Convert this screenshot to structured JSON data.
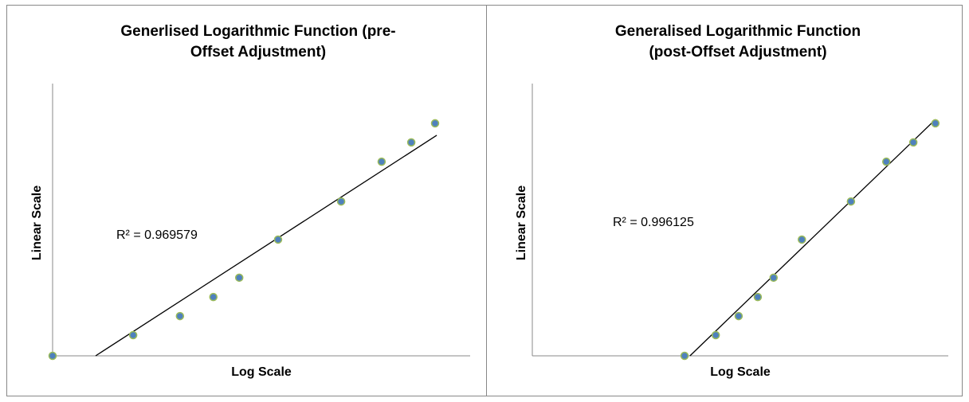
{
  "chart_data": [
    {
      "type": "scatter",
      "title": [
        "Generlised Logarithmic Function (pre-",
        "Offset Adjustment)"
      ],
      "x_label": "Log Scale",
      "y_label": "Linear Scale",
      "annotation": "R² = 0.969579",
      "x": [
        0,
        19.3,
        30.5,
        38.5,
        44.7,
        54.0,
        69.1,
        78.8,
        85.9,
        91.6
      ],
      "values": [
        0,
        7.6,
        14.6,
        21.6,
        28.7,
        42.7,
        56.7,
        71.3,
        78.4,
        85.4
      ],
      "trendline": {
        "x": [
          10.3,
          92
        ],
        "y": [
          0,
          81
        ]
      },
      "xlim": [
        0,
        100
      ],
      "ylim": [
        0,
        100
      ],
      "color": "#4f81bd",
      "edge_color": "#9bbb59",
      "line_color": "#000000"
    },
    {
      "type": "scatter",
      "title": [
        "Generalised Logarithmic Function",
        "(post-Offset Adjustment)"
      ],
      "x_label": "Log Scale",
      "y_label": "Linear Scale",
      "annotation": "R² = 0.996125",
      "x": [
        36.6,
        44.1,
        49.6,
        54.2,
        58.0,
        64.8,
        76.6,
        85.1,
        91.6,
        96.9
      ],
      "values": [
        0,
        7.6,
        14.6,
        21.6,
        28.7,
        42.7,
        56.7,
        71.3,
        78.4,
        85.4
      ],
      "trendline": {
        "x": [
          37.9,
          96.9
        ],
        "y": [
          0,
          86.8
        ]
      },
      "xlim": [
        0,
        100
      ],
      "ylim": [
        0,
        100
      ],
      "color": "#4f81bd",
      "edge_color": "#9bbb59",
      "line_color": "#000000"
    }
  ]
}
